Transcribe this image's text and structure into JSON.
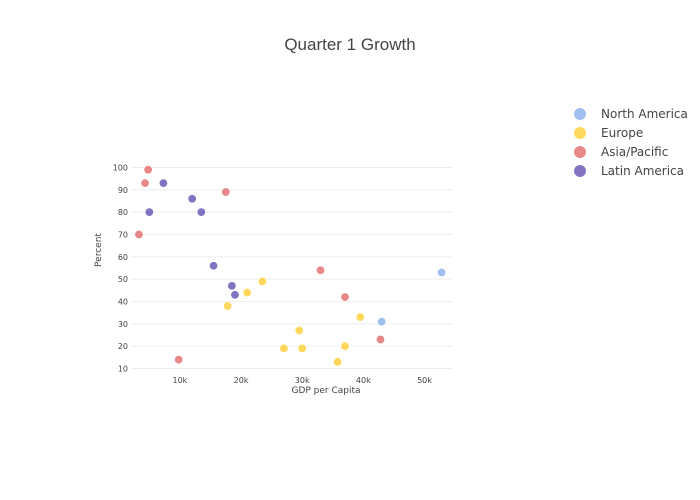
{
  "chart_data": {
    "type": "scatter",
    "title": "Quarter 1 Growth",
    "xlabel": "GDP per Capita",
    "ylabel": "Percent",
    "xlim": [
      2000,
      54500
    ],
    "ylim": [
      8,
      102
    ],
    "xticks": [
      10000,
      20000,
      30000,
      40000,
      50000
    ],
    "xtick_labels": [
      "10k",
      "20k",
      "30k",
      "40k",
      "50k"
    ],
    "yticks": [
      10,
      20,
      30,
      40,
      50,
      60,
      70,
      80,
      90,
      100
    ],
    "ytick_labels": [
      "10",
      "20",
      "30",
      "40",
      "50",
      "60",
      "70",
      "80",
      "90",
      "100"
    ],
    "grid": "horizontal",
    "legend_position": "top-right",
    "series": [
      {
        "name": "North America",
        "color": "#8fb4ec",
        "points": [
          {
            "x": 52800,
            "y": 53
          },
          {
            "x": 43000,
            "y": 31
          }
        ]
      },
      {
        "name": "Europe",
        "color": "#ffd23f",
        "points": [
          {
            "x": 23500,
            "y": 49
          },
          {
            "x": 21000,
            "y": 44
          },
          {
            "x": 17800,
            "y": 38
          },
          {
            "x": 39500,
            "y": 33
          },
          {
            "x": 29500,
            "y": 27
          },
          {
            "x": 27000,
            "y": 19
          },
          {
            "x": 30000,
            "y": 19
          },
          {
            "x": 37000,
            "y": 20
          },
          {
            "x": 35800,
            "y": 13
          }
        ]
      },
      {
        "name": "Asia/Pacific",
        "color": "#e57373",
        "points": [
          {
            "x": 4800,
            "y": 99
          },
          {
            "x": 4300,
            "y": 93
          },
          {
            "x": 17500,
            "y": 89
          },
          {
            "x": 3300,
            "y": 70
          },
          {
            "x": 33000,
            "y": 54
          },
          {
            "x": 37000,
            "y": 42
          },
          {
            "x": 42800,
            "y": 23
          },
          {
            "x": 9800,
            "y": 14
          }
        ]
      },
      {
        "name": "Latin America",
        "color": "#6c5bb8",
        "points": [
          {
            "x": 7300,
            "y": 93
          },
          {
            "x": 12000,
            "y": 86
          },
          {
            "x": 5000,
            "y": 80
          },
          {
            "x": 13500,
            "y": 80
          },
          {
            "x": 15500,
            "y": 56
          },
          {
            "x": 18500,
            "y": 47
          },
          {
            "x": 19000,
            "y": 43
          }
        ]
      }
    ]
  }
}
